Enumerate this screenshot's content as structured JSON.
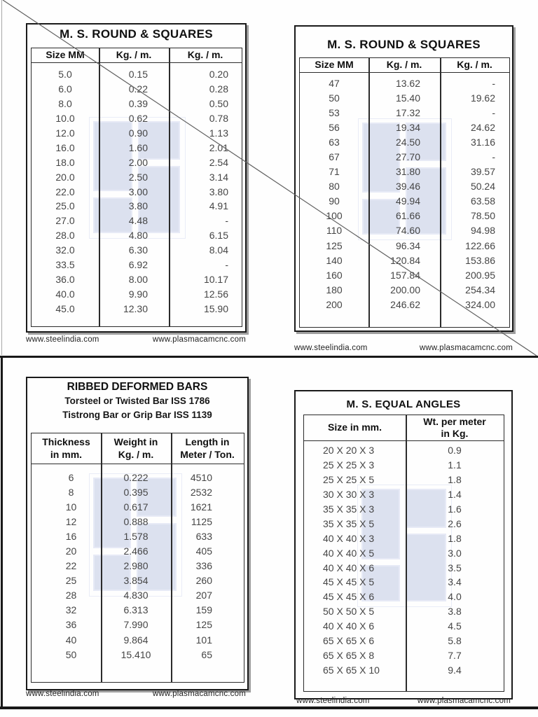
{
  "footer": {
    "left": "www.steelindia.com",
    "right": "www.plasmacamcnc.com"
  },
  "round_squares_left": {
    "title": "M. S. ROUND & SQUARES",
    "headers": [
      "Size MM",
      "Kg. / m.",
      "Kg. / m."
    ],
    "rows": [
      [
        "5.0",
        "0.15",
        "0.20"
      ],
      [
        "6.0",
        "0.22",
        "0.28"
      ],
      [
        "8.0",
        "0.39",
        "0.50"
      ],
      [
        "10.0",
        "0.62",
        "0.78"
      ],
      [
        "12.0",
        "0.90",
        "1.13"
      ],
      [
        "16.0",
        "1.60",
        "2.01"
      ],
      [
        "18.0",
        "2.00",
        "2.54"
      ],
      [
        "20.0",
        "2.50",
        "3.14"
      ],
      [
        "22.0",
        "3.00",
        "3.80"
      ],
      [
        "25.0",
        "3.80",
        "4.91"
      ],
      [
        "27.0",
        "4.48",
        "-"
      ],
      [
        "28.0",
        "4.80",
        "6.15"
      ],
      [
        "32.0",
        "6.30",
        "8.04"
      ],
      [
        "33.5",
        "6.92",
        "-"
      ],
      [
        "36.0",
        "8.00",
        "10.17"
      ],
      [
        "40.0",
        "9.90",
        "12.56"
      ],
      [
        "45.0",
        "12.30",
        "15.90"
      ]
    ]
  },
  "round_squares_right": {
    "title": "M. S. ROUND & SQUARES",
    "headers": [
      "Size MM",
      "Kg. / m.",
      "Kg. / m."
    ],
    "rows": [
      [
        "47",
        "13.62",
        "-"
      ],
      [
        "50",
        "15.40",
        "19.62"
      ],
      [
        "53",
        "17.32",
        "-"
      ],
      [
        "56",
        "19.34",
        "24.62"
      ],
      [
        "63",
        "24.50",
        "31.16"
      ],
      [
        "67",
        "27.70",
        "-"
      ],
      [
        "71",
        "31.80",
        "39.57"
      ],
      [
        "80",
        "39.46",
        "50.24"
      ],
      [
        "90",
        "49.94",
        "63.58"
      ],
      [
        "100",
        "61.66",
        "78.50"
      ],
      [
        "110",
        "74.60",
        "94.98"
      ],
      [
        "125",
        "96.34",
        "122.66"
      ],
      [
        "140",
        "120.84",
        "153.86"
      ],
      [
        "160",
        "157.84",
        "200.95"
      ],
      [
        "180",
        "200.00",
        "254.34"
      ],
      [
        "200",
        "246.62",
        "324.00"
      ]
    ]
  },
  "ribbed_bars": {
    "title": "RIBBED DEFORMED BARS",
    "subtitle1": "Torsteel or Twisted Bar ISS 1786",
    "subtitle2": "Tistrong Bar or Grip Bar ISS 1139",
    "headers": [
      "Thickness\nin mm.",
      "Weight in\nKg. / m.",
      "Length in\nMeter / Ton."
    ],
    "rows": [
      [
        "6",
        "0.222",
        "4510"
      ],
      [
        "8",
        "0.395",
        "2532"
      ],
      [
        "10",
        "0.617",
        "1621"
      ],
      [
        "12",
        "0.888",
        "1125"
      ],
      [
        "16",
        "1.578",
        "633"
      ],
      [
        "20",
        "2.466",
        "405"
      ],
      [
        "22",
        "2.980",
        "336"
      ],
      [
        "25",
        "3.854",
        "260"
      ],
      [
        "28",
        "4.830",
        "207"
      ],
      [
        "32",
        "6.313",
        "159"
      ],
      [
        "36",
        "7.990",
        "125"
      ],
      [
        "40",
        "9.864",
        "101"
      ],
      [
        "50",
        "15.410",
        "65"
      ]
    ]
  },
  "equal_angles": {
    "title": "M. S. EQUAL ANGLES",
    "headers": [
      "Size in mm.",
      "Wt. per meter\nin Kg."
    ],
    "rows": [
      [
        "20 X 20 X 3",
        "0.9"
      ],
      [
        "25 X 25 X 3",
        "1.1"
      ],
      [
        "25 X 25 X 5",
        "1.8"
      ],
      [
        "30 X 30 X 3",
        "1.4"
      ],
      [
        "35 X 35 X 3",
        "1.6"
      ],
      [
        "35 X 35 X 5",
        "2.6"
      ],
      [
        "40 X 40 X 3",
        "1.8"
      ],
      [
        "40 X 40 X 5",
        "3.0"
      ],
      [
        "40 X 40 X 6",
        "3.5"
      ],
      [
        "45 X 45 X 5",
        "3.4"
      ],
      [
        "45 X 45 X 6",
        "4.0"
      ],
      [
        "50 X 50 X 5",
        "3.8"
      ],
      [
        "40 X 40 X 6",
        "4.5"
      ],
      [
        "65 X 65 X 6",
        "5.8"
      ],
      [
        "65 X 65 X 8",
        "7.7"
      ],
      [
        "65 X 65 X 10",
        "9.4"
      ]
    ]
  },
  "colors": {
    "watermark": "#dce1ef",
    "border": "#1a1a1a",
    "data_text": "#454545"
  }
}
